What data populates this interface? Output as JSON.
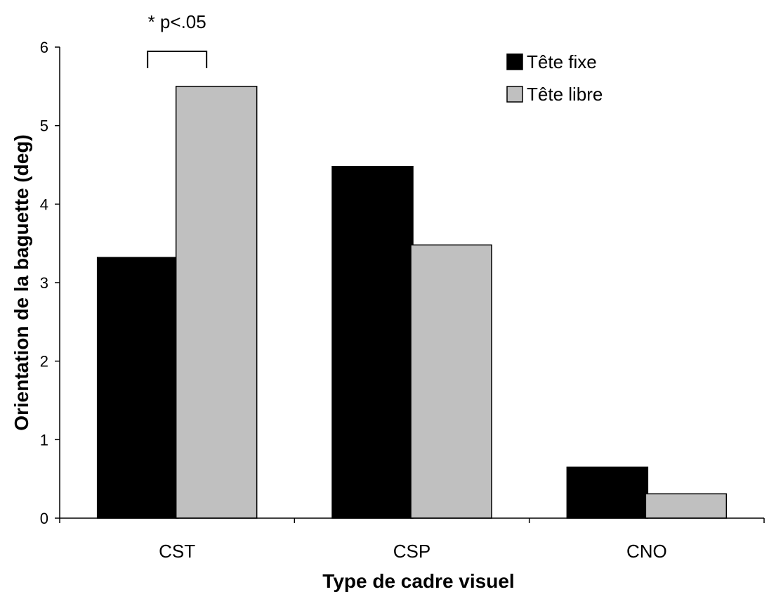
{
  "chart_data": {
    "type": "bar",
    "categories": [
      "CST",
      "CSP",
      "CNO"
    ],
    "series": [
      {
        "name": "Tête fixe",
        "values": [
          3.32,
          4.48,
          0.65
        ],
        "color": "#000000"
      },
      {
        "name": "Tête libre",
        "values": [
          5.5,
          3.48,
          0.31
        ],
        "color": "#c0c0c0"
      }
    ],
    "title": "",
    "xlabel": "Type de cadre visuel",
    "ylabel": "Orientation de la baguette (deg)",
    "ylim": [
      0,
      6
    ],
    "yticks": [
      "0",
      "1",
      "2",
      "3",
      "4",
      "5",
      "6"
    ],
    "grid": false,
    "legend_position": "top-right",
    "annotation": {
      "text": "* p<.05",
      "category": "CST"
    }
  }
}
